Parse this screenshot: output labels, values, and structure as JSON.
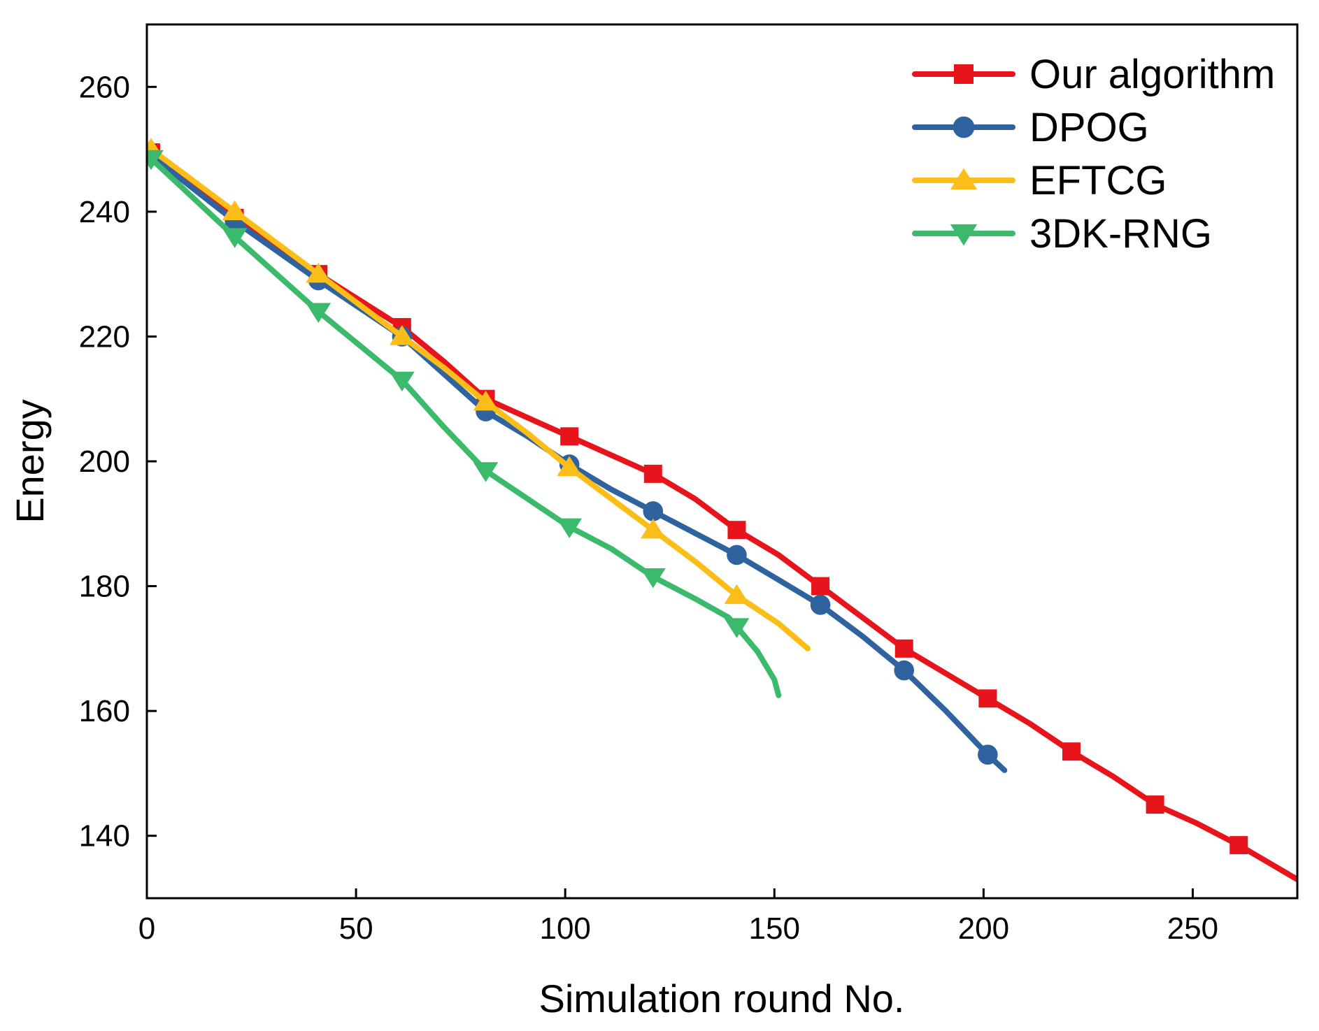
{
  "chart_data": {
    "type": "line",
    "title": "",
    "xlabel": "Simulation round No.",
    "ylabel": "Energy",
    "xlim": [
      0,
      275
    ],
    "ylim": [
      130,
      270
    ],
    "xticks": [
      0,
      50,
      100,
      150,
      200,
      250
    ],
    "yticks": [
      140,
      160,
      180,
      200,
      220,
      240,
      260
    ],
    "grid": false,
    "legend_position": "top-right",
    "series": [
      {
        "name": "Our algorithm",
        "color": "#e8141c",
        "marker": "square",
        "line": [
          [
            1,
            249.5
          ],
          [
            21,
            239
          ],
          [
            41,
            230
          ],
          [
            61,
            221.5
          ],
          [
            71,
            216
          ],
          [
            81,
            210
          ],
          [
            91,
            207
          ],
          [
            101,
            204
          ],
          [
            111,
            201
          ],
          [
            121,
            198
          ],
          [
            131,
            194
          ],
          [
            141,
            189
          ],
          [
            151,
            185
          ],
          [
            161,
            180
          ],
          [
            171,
            175
          ],
          [
            181,
            170
          ],
          [
            191,
            166
          ],
          [
            201,
            162
          ],
          [
            211,
            158
          ],
          [
            221,
            153.5
          ],
          [
            231,
            149.5
          ],
          [
            241,
            145
          ],
          [
            251,
            142
          ],
          [
            261,
            138.5
          ],
          [
            275,
            133
          ]
        ],
        "marker_x": [
          1,
          21,
          41,
          61,
          81,
          101,
          121,
          141,
          161,
          181,
          201,
          221,
          241,
          261
        ],
        "marker_y": [
          249.5,
          239,
          230,
          221.5,
          210,
          204,
          198,
          189,
          180,
          170,
          162,
          153.5,
          145,
          138.5
        ]
      },
      {
        "name": "DPOG",
        "color": "#2e63a0",
        "marker": "circle",
        "line": [
          [
            1,
            249
          ],
          [
            21,
            238.5
          ],
          [
            41,
            229
          ],
          [
            61,
            220
          ],
          [
            71,
            214
          ],
          [
            81,
            208
          ],
          [
            91,
            204
          ],
          [
            101,
            199.5
          ],
          [
            111,
            195.5
          ],
          [
            121,
            192
          ],
          [
            131,
            188.5
          ],
          [
            141,
            185
          ],
          [
            151,
            181
          ],
          [
            161,
            177
          ],
          [
            171,
            172
          ],
          [
            181,
            166.5
          ],
          [
            191,
            160
          ],
          [
            201,
            153
          ],
          [
            205,
            150.5
          ]
        ],
        "marker_x": [
          1,
          21,
          41,
          61,
          81,
          101,
          121,
          141,
          161,
          181,
          201
        ],
        "marker_y": [
          249,
          238.5,
          229,
          220,
          208,
          199.5,
          192,
          185,
          177,
          166.5,
          153
        ]
      },
      {
        "name": "EFTCG",
        "color": "#fbbd18",
        "marker": "triangle-up",
        "line": [
          [
            1,
            250
          ],
          [
            21,
            240
          ],
          [
            41,
            230
          ],
          [
            61,
            220
          ],
          [
            71,
            215
          ],
          [
            81,
            209.5
          ],
          [
            91,
            204.5
          ],
          [
            101,
            199
          ],
          [
            111,
            194
          ],
          [
            121,
            189
          ],
          [
            131,
            184
          ],
          [
            141,
            178.5
          ],
          [
            151,
            174
          ],
          [
            158,
            170
          ]
        ],
        "marker_x": [
          1,
          21,
          41,
          61,
          81,
          101,
          121,
          141
        ],
        "marker_y": [
          250,
          240,
          230,
          220,
          209.5,
          199,
          189,
          178.5
        ]
      },
      {
        "name": "3DK-RNG",
        "color": "#3bba6b",
        "marker": "triangle-down",
        "line": [
          [
            1,
            248.5
          ],
          [
            21,
            236
          ],
          [
            41,
            224
          ],
          [
            61,
            213
          ],
          [
            71,
            205.5
          ],
          [
            81,
            198.5
          ],
          [
            91,
            194
          ],
          [
            101,
            189.5
          ],
          [
            111,
            186
          ],
          [
            121,
            181.5
          ],
          [
            131,
            178
          ],
          [
            139,
            175
          ],
          [
            141,
            173.5
          ],
          [
            146,
            169.5
          ],
          [
            150,
            165
          ],
          [
            151,
            162.5
          ]
        ],
        "marker_x": [
          1,
          21,
          41,
          61,
          81,
          101,
          121,
          141
        ],
        "marker_y": [
          248.5,
          236,
          224,
          213,
          198.5,
          189.5,
          181.5,
          173.5
        ]
      }
    ]
  }
}
